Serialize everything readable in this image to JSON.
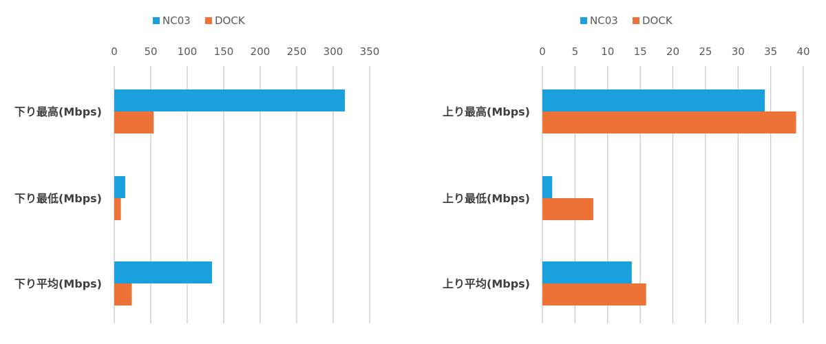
{
  "colors": {
    "nc03": "#1aa0dc",
    "dock": "#ec7238",
    "grid": "#c9c9c9",
    "axis_text": "#595959",
    "category_text": "#404040"
  },
  "chart_data": [
    {
      "type": "bar",
      "orientation": "horizontal",
      "categories": [
        "下り最高(Mbps)",
        "下り最低(Mbps)",
        "下り平均(Mbps)"
      ],
      "series": [
        {
          "name": "NC03",
          "values": [
            316,
            15,
            134
          ]
        },
        {
          "name": "DOCK",
          "values": [
            54,
            9,
            24
          ]
        }
      ],
      "xlim": [
        0,
        350
      ],
      "xticks": [
        0,
        50,
        100,
        150,
        200,
        250,
        300,
        350
      ],
      "grid": true,
      "legend": "top",
      "axis_position": "top"
    },
    {
      "type": "bar",
      "orientation": "horizontal",
      "categories": [
        "上り最高(Mbps)",
        "上り最低(Mbps)",
        "上り平均(Mbps)"
      ],
      "series": [
        {
          "name": "NC03",
          "values": [
            34.1,
            1.5,
            13.7
          ]
        },
        {
          "name": "DOCK",
          "values": [
            38.9,
            7.8,
            15.9
          ]
        }
      ],
      "xlim": [
        0,
        40
      ],
      "xticks": [
        0,
        5,
        10,
        15,
        20,
        25,
        30,
        35,
        40
      ],
      "grid": true,
      "legend": "top",
      "axis_position": "top"
    }
  ]
}
